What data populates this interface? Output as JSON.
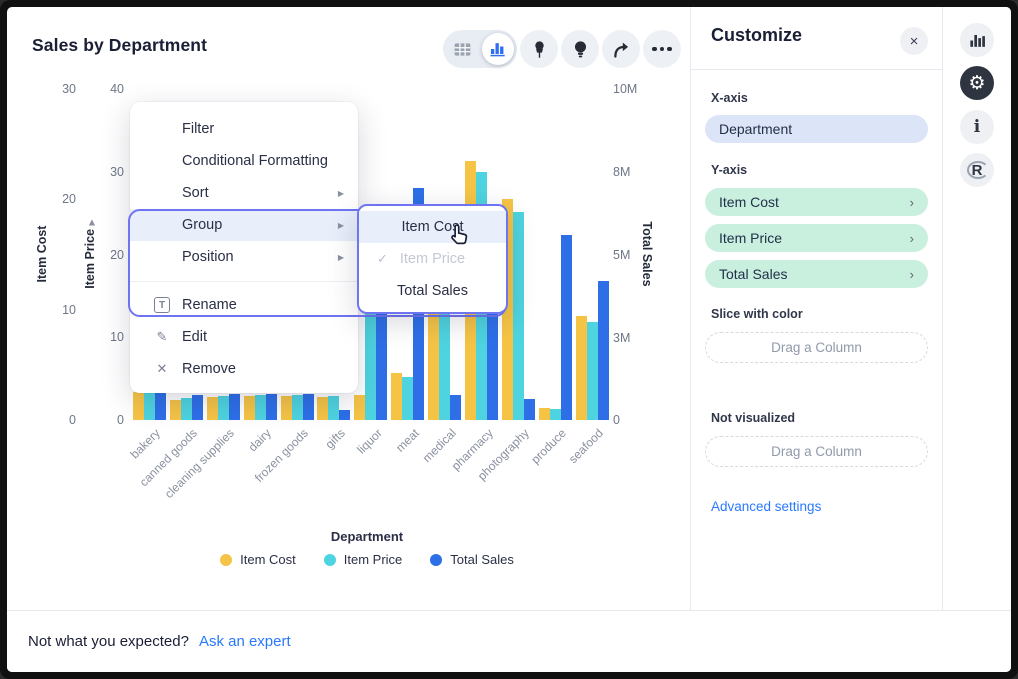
{
  "title": "Sales by Department",
  "toolbar": {
    "view_toggle": [
      {
        "name": "table-view",
        "active": false
      },
      {
        "name": "chart-view",
        "active": true
      }
    ],
    "buttons": [
      "pin",
      "insight",
      "share",
      "more"
    ]
  },
  "context_menu": {
    "items": [
      {
        "label": "Filter"
      },
      {
        "label": "Conditional Formatting"
      },
      {
        "label": "Sort",
        "arrow": true
      },
      {
        "label": "Group",
        "arrow": true,
        "highlighted": true
      },
      {
        "label": "Position",
        "arrow": true
      },
      {
        "divider": true
      },
      {
        "label": "Rename",
        "icon": "rename-icon",
        "glyph": "T"
      },
      {
        "label": "Edit",
        "icon": "edit-icon",
        "glyph": "✎"
      },
      {
        "label": "Remove",
        "icon": "remove-icon",
        "glyph": "✕"
      }
    ]
  },
  "submenu": {
    "items": [
      {
        "label": "Item Cost",
        "hover": true
      },
      {
        "label": "Item Price",
        "disabled": true,
        "checked": true
      },
      {
        "label": "Total Sales"
      }
    ]
  },
  "customize_panel": {
    "header": "Customize",
    "close_label": "×",
    "x_axis_label": "X-axis",
    "x_axis_value": "Department",
    "y_axis_label": "Y-axis",
    "y_axis_values": [
      "Item Cost",
      "Item Price",
      "Total Sales"
    ],
    "slice_label": "Slice with color",
    "slice_placeholder": "Drag a Column",
    "not_visualized_label": "Not visualized",
    "not_visualized_placeholder": "Drag a Column",
    "advanced_link": "Advanced settings"
  },
  "rail": {
    "icons": [
      "chart-icon",
      "settings-icon",
      "info-icon",
      "r-logo-icon"
    ],
    "active": "settings-icon"
  },
  "footer": {
    "question": "Not what you expected?",
    "link": "Ask an expert"
  },
  "colors": {
    "item_cost": "#F6C445",
    "item_price": "#4ED4E0",
    "total_sales": "#2E6FE8",
    "highlight_border": "#6F74F2",
    "menu_hover_bg": "#E9EEFB",
    "accent_link": "#2979FF"
  },
  "chart_data": {
    "type": "bar",
    "title": "Sales by Department",
    "categories": [
      "bakery",
      "canned goods",
      "cleaning supplies",
      "dairy",
      "frozen goods",
      "gifts",
      "liquor",
      "meat",
      "medical",
      "pharmacy",
      "photography",
      "produce",
      "seafood"
    ],
    "series": [
      {
        "name": "Item Cost",
        "axis": "left1",
        "color": "#F6C445",
        "values": [
          2.5,
          1.8,
          2.1,
          2.2,
          2.2,
          2.1,
          2.3,
          4.3,
          14.5,
          23.5,
          20.0,
          1.1,
          9.4
        ]
      },
      {
        "name": "Item Price",
        "axis": "left2",
        "color": "#4ED4E0",
        "values": [
          3.4,
          2.7,
          2.9,
          3.0,
          3.0,
          2.9,
          23.0,
          5.2,
          20.5,
          30.0,
          25.2,
          1.3,
          11.8
        ]
      },
      {
        "name": "Total Sales",
        "axis": "right",
        "color": "#2E6FE8",
        "values": [
          850000,
          750000,
          800000,
          800000,
          800000,
          300000,
          5500000,
          7000000,
          750000,
          3200000,
          650000,
          5600000,
          4200000
        ]
      }
    ],
    "axes": {
      "left1": {
        "title": "Item Cost",
        "max": 30,
        "ticks": [
          {
            "label": "0",
            "pos": 0
          },
          {
            "label": "10",
            "pos": 0.3333
          },
          {
            "label": "20",
            "pos": 0.6667
          },
          {
            "label": "30",
            "pos": 1
          }
        ]
      },
      "left2": {
        "title": "Item Price",
        "max": 40,
        "ticks": [
          {
            "label": "0",
            "pos": 0
          },
          {
            "label": "10",
            "pos": 0.25
          },
          {
            "label": "20",
            "pos": 0.5
          },
          {
            "label": "30",
            "pos": 0.75
          },
          {
            "label": "40",
            "pos": 1
          }
        ]
      },
      "right": {
        "title": "Total Sales",
        "max": 10000000,
        "ticks": [
          {
            "label": "0",
            "pos": 0
          },
          {
            "label": "3M",
            "pos": 0.248
          },
          {
            "label": "5M",
            "pos": 0.499
          },
          {
            "label": "8M",
            "pos": 0.749
          },
          {
            "label": "10M",
            "pos": 1
          }
        ]
      },
      "x": {
        "title": "Department"
      }
    },
    "legend": [
      "Item Cost",
      "Item Price",
      "Total Sales"
    ],
    "legend_position": "bottom",
    "grid": false
  }
}
